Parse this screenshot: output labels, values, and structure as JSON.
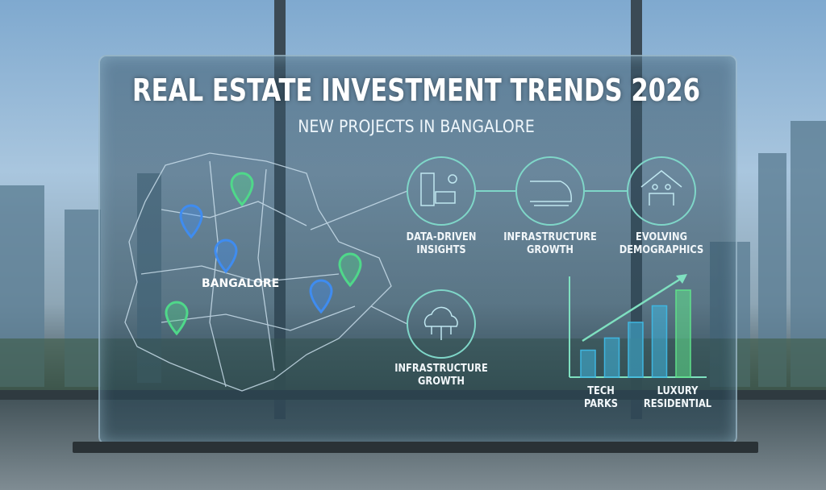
{
  "title": "REAL ESTATE INVESTMENT TRENDS 2026",
  "subtitle": "NEW PROJECTS IN BANGALORE",
  "map": {
    "city_label": "BANGALORE",
    "pin_colors": [
      "#4fd88a",
      "#3f8cf0"
    ]
  },
  "features": [
    {
      "label_line1": "DATA-DRIVEN",
      "label_line2": "INSIGHTS",
      "icon": "building-solar-icon"
    },
    {
      "label_line1": "INFRASTRUCTURE",
      "label_line2": "GROWTH",
      "icon": "train-icon"
    },
    {
      "label_line1": "EVOLVING",
      "label_line2": "DEMOGRAPHICS",
      "icon": "family-house-icon"
    },
    {
      "label_line1": "INFRASTRUCTURE",
      "label_line2": "GROWTH",
      "icon": "cloud-network-icon"
    }
  ],
  "chart": {
    "bar_levels": [
      0.31,
      0.45,
      0.63,
      0.82,
      1.0
    ],
    "label_left_line1": "TECH",
    "label_left_line2": "PARKS",
    "label_right_line1": "LUXURY",
    "label_right_line2": "RESIDENTIAL",
    "accent": "#5fe08a",
    "bar_color": "#3fb6e0"
  }
}
